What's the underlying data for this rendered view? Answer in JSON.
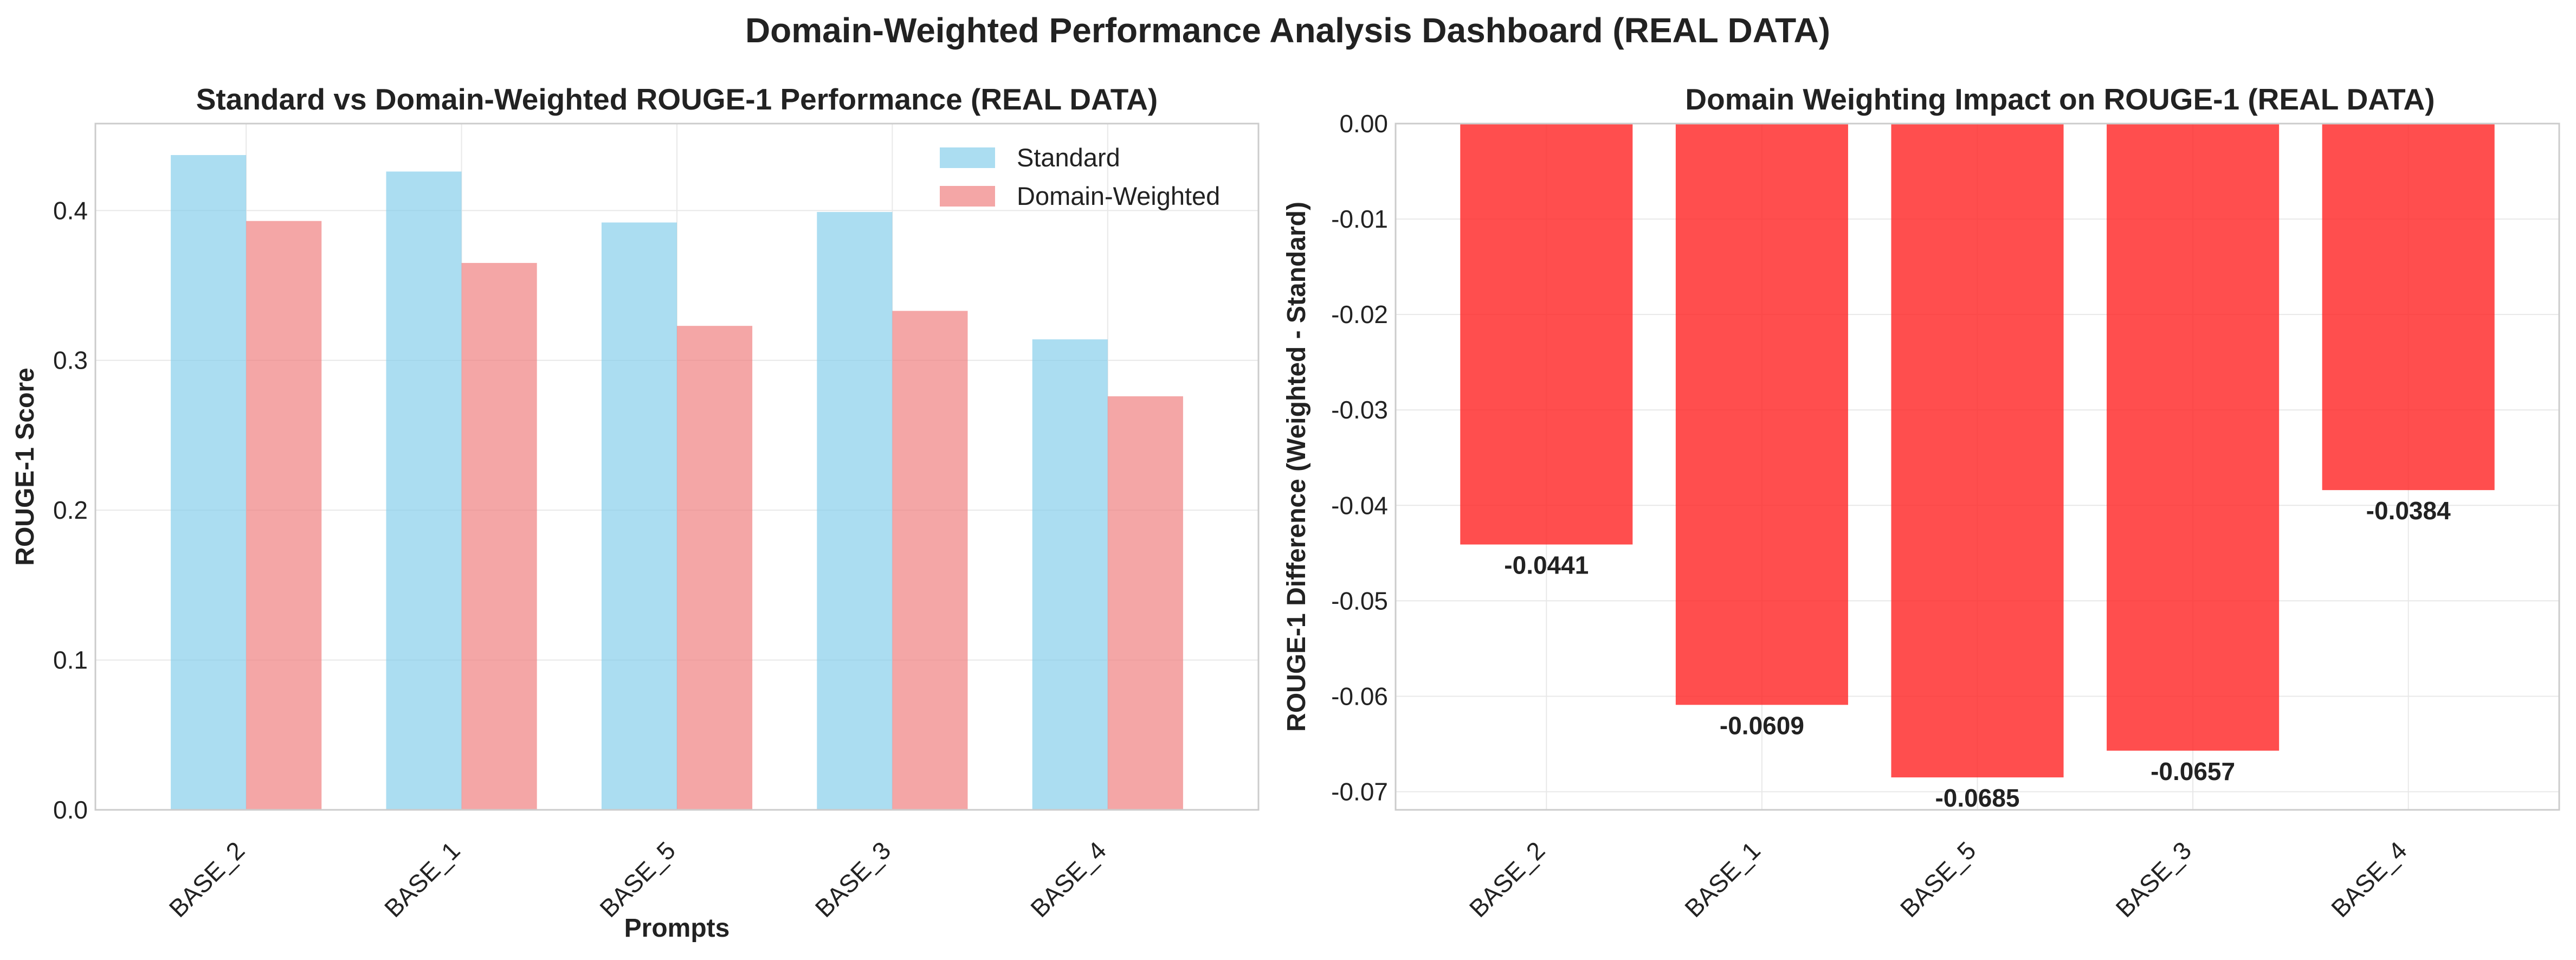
{
  "figure": {
    "suptitle": "Domain-Weighted Performance Analysis Dashboard (REAL DATA)"
  },
  "chart_data": [
    {
      "type": "bar",
      "title": "Standard vs Domain-Weighted ROUGE-1 Performance (REAL DATA)",
      "xlabel": "Prompts",
      "ylabel": "ROUGE-1 Score",
      "categories": [
        "BASE_2",
        "BASE_1",
        "BASE_5",
        "BASE_3",
        "BASE_4"
      ],
      "series": [
        {
          "name": "Standard",
          "values": [
            0.437,
            0.426,
            0.392,
            0.399,
            0.314
          ],
          "color": "#87ceeb"
        },
        {
          "name": "Domain-Weighted",
          "values": [
            0.393,
            0.365,
            0.323,
            0.333,
            0.276
          ],
          "color": "#f08080"
        }
      ],
      "ylim": [
        0,
        0.458
      ],
      "yticks": [
        "0.0",
        "0.1",
        "0.2",
        "0.3",
        "0.4"
      ],
      "grid": true,
      "legend": "top-right"
    },
    {
      "type": "bar",
      "title": "Domain Weighting Impact on ROUGE-1 (REAL DATA)",
      "xlabel": "",
      "ylabel": "ROUGE-1 Difference (Weighted - Standard)",
      "categories": [
        "BASE_2",
        "BASE_1",
        "BASE_5",
        "BASE_3",
        "BASE_4"
      ],
      "values": [
        -0.0441,
        -0.0609,
        -0.0685,
        -0.0657,
        -0.0384
      ],
      "value_labels": [
        "-0.0441",
        "-0.0609",
        "-0.0685",
        "-0.0657",
        "-0.0384"
      ],
      "color": "#ff2222",
      "ylim": [
        -0.0719,
        0
      ],
      "yticks": [
        "0.00",
        "-0.01",
        "-0.02",
        "-0.03",
        "-0.04",
        "-0.05",
        "-0.06",
        "-0.07"
      ],
      "grid": true
    }
  ]
}
